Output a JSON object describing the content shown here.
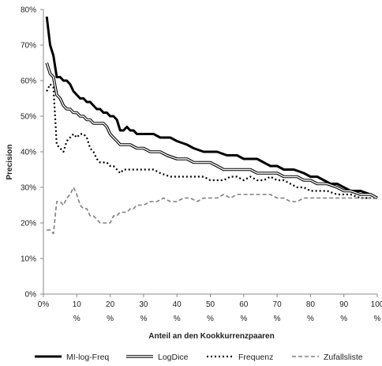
{
  "chart_data": {
    "type": "line",
    "title": "",
    "xlabel": "Anteil an den Kookkurrenzpaaren",
    "ylabel": "Precision",
    "xlim": [
      0,
      100
    ],
    "ylim": [
      0,
      80
    ],
    "grid": false,
    "legend_position": "bottom",
    "x_ticks": [
      {
        "value": 0,
        "line1": "0%",
        "line2": ""
      },
      {
        "value": 10,
        "line1": "10",
        "line2": "%"
      },
      {
        "value": 20,
        "line1": "20",
        "line2": "%"
      },
      {
        "value": 30,
        "line1": "30",
        "line2": "%"
      },
      {
        "value": 40,
        "line1": "40",
        "line2": "%"
      },
      {
        "value": 50,
        "line1": "50",
        "line2": "%"
      },
      {
        "value": 60,
        "line1": "60",
        "line2": "%"
      },
      {
        "value": 70,
        "line1": "70",
        "line2": "%"
      },
      {
        "value": 80,
        "line1": "80",
        "line2": "%"
      },
      {
        "value": 90,
        "line1": "90",
        "line2": "%"
      },
      {
        "value": 100,
        "line1": "100",
        "line2": "%"
      }
    ],
    "y_ticks": [
      {
        "value": 0,
        "label": "0%"
      },
      {
        "value": 10,
        "label": "10%"
      },
      {
        "value": 20,
        "label": "20%"
      },
      {
        "value": 30,
        "label": "30%"
      },
      {
        "value": 40,
        "label": "40%"
      },
      {
        "value": 50,
        "label": "50%"
      },
      {
        "value": 60,
        "label": "60%"
      },
      {
        "value": 70,
        "label": "70%"
      },
      {
        "value": 80,
        "label": "80%"
      }
    ],
    "series": [
      {
        "name": "MI-log-Freq",
        "style": "thick-solid",
        "color": "#000000",
        "points": [
          [
            1,
            78
          ],
          [
            2,
            70
          ],
          [
            3,
            67
          ],
          [
            4,
            61
          ],
          [
            5,
            61
          ],
          [
            6,
            60
          ],
          [
            7,
            60
          ],
          [
            8,
            59
          ],
          [
            9,
            57
          ],
          [
            10,
            56
          ],
          [
            11,
            55
          ],
          [
            12,
            55
          ],
          [
            13,
            54
          ],
          [
            14,
            54
          ],
          [
            15,
            53
          ],
          [
            16,
            52
          ],
          [
            17,
            52
          ],
          [
            18,
            51
          ],
          [
            19,
            51
          ],
          [
            20,
            50
          ],
          [
            21,
            50
          ],
          [
            22,
            49
          ],
          [
            23,
            46
          ],
          [
            24,
            46
          ],
          [
            25,
            47
          ],
          [
            26,
            46
          ],
          [
            27,
            46
          ],
          [
            28,
            45
          ],
          [
            30,
            45
          ],
          [
            33,
            45
          ],
          [
            35,
            44
          ],
          [
            38,
            44
          ],
          [
            40,
            43
          ],
          [
            43,
            42
          ],
          [
            45,
            41
          ],
          [
            48,
            40
          ],
          [
            50,
            40
          ],
          [
            52,
            40
          ],
          [
            55,
            39
          ],
          [
            58,
            39
          ],
          [
            60,
            38
          ],
          [
            62,
            38
          ],
          [
            64,
            38
          ],
          [
            66,
            37
          ],
          [
            68,
            36
          ],
          [
            70,
            36
          ],
          [
            72,
            35
          ],
          [
            75,
            35
          ],
          [
            78,
            34
          ],
          [
            80,
            33
          ],
          [
            82,
            33
          ],
          [
            84,
            32
          ],
          [
            86,
            31
          ],
          [
            88,
            31
          ],
          [
            90,
            30
          ],
          [
            92,
            29
          ],
          [
            95,
            29
          ],
          [
            98,
            28
          ],
          [
            100,
            27
          ]
        ]
      },
      {
        "name": "LogDice",
        "style": "double-line",
        "color": "#000000",
        "points": [
          [
            1,
            65
          ],
          [
            2,
            62
          ],
          [
            3,
            61
          ],
          [
            4,
            56
          ],
          [
            5,
            55
          ],
          [
            6,
            53
          ],
          [
            7,
            52
          ],
          [
            8,
            52
          ],
          [
            9,
            51
          ],
          [
            10,
            51
          ],
          [
            11,
            50
          ],
          [
            12,
            50
          ],
          [
            13,
            49
          ],
          [
            14,
            49
          ],
          [
            15,
            48
          ],
          [
            16,
            48
          ],
          [
            17,
            48
          ],
          [
            18,
            48
          ],
          [
            19,
            47
          ],
          [
            20,
            45
          ],
          [
            21,
            44
          ],
          [
            22,
            43
          ],
          [
            23,
            42
          ],
          [
            26,
            42
          ],
          [
            28,
            41
          ],
          [
            30,
            41
          ],
          [
            32,
            40
          ],
          [
            35,
            40
          ],
          [
            37,
            39
          ],
          [
            40,
            38
          ],
          [
            43,
            38
          ],
          [
            45,
            37
          ],
          [
            48,
            37
          ],
          [
            50,
            37
          ],
          [
            52,
            36
          ],
          [
            54,
            35
          ],
          [
            56,
            35
          ],
          [
            58,
            35
          ],
          [
            60,
            35
          ],
          [
            62,
            35
          ],
          [
            64,
            34
          ],
          [
            66,
            34
          ],
          [
            68,
            34
          ],
          [
            70,
            34
          ],
          [
            72,
            33
          ],
          [
            74,
            33
          ],
          [
            76,
            33
          ],
          [
            78,
            32
          ],
          [
            80,
            32
          ],
          [
            82,
            31
          ],
          [
            85,
            31
          ],
          [
            88,
            30
          ],
          [
            90,
            29
          ],
          [
            92,
            29
          ],
          [
            95,
            28
          ],
          [
            98,
            28
          ],
          [
            100,
            27
          ]
        ]
      },
      {
        "name": "Frequenz",
        "style": "dotted",
        "color": "#000000",
        "points": [
          [
            1,
            57
          ],
          [
            2,
            59
          ],
          [
            3,
            58
          ],
          [
            4,
            42
          ],
          [
            5,
            41
          ],
          [
            6,
            40
          ],
          [
            7,
            43
          ],
          [
            8,
            44
          ],
          [
            9,
            45
          ],
          [
            10,
            44
          ],
          [
            11,
            45
          ],
          [
            12,
            45
          ],
          [
            13,
            44
          ],
          [
            14,
            41
          ],
          [
            15,
            40
          ],
          [
            16,
            38
          ],
          [
            17,
            37
          ],
          [
            18,
            37
          ],
          [
            19,
            37
          ],
          [
            20,
            36
          ],
          [
            21,
            36
          ],
          [
            22,
            35
          ],
          [
            23,
            34
          ],
          [
            24,
            35
          ],
          [
            26,
            35
          ],
          [
            28,
            35
          ],
          [
            30,
            35
          ],
          [
            33,
            35
          ],
          [
            35,
            34
          ],
          [
            38,
            33
          ],
          [
            40,
            33
          ],
          [
            43,
            33
          ],
          [
            45,
            33
          ],
          [
            48,
            33
          ],
          [
            50,
            32
          ],
          [
            52,
            32
          ],
          [
            54,
            32
          ],
          [
            56,
            33
          ],
          [
            58,
            33
          ],
          [
            60,
            32
          ],
          [
            62,
            33
          ],
          [
            64,
            32
          ],
          [
            66,
            32
          ],
          [
            68,
            33
          ],
          [
            70,
            32
          ],
          [
            72,
            32
          ],
          [
            74,
            31
          ],
          [
            76,
            30
          ],
          [
            78,
            30
          ],
          [
            80,
            29
          ],
          [
            82,
            29
          ],
          [
            85,
            29
          ],
          [
            88,
            28
          ],
          [
            90,
            28
          ],
          [
            92,
            28
          ],
          [
            95,
            27
          ],
          [
            98,
            27
          ],
          [
            100,
            27
          ]
        ]
      },
      {
        "name": "Zufallsliste",
        "style": "dashed",
        "color": "#7f7f7f",
        "points": [
          [
            1,
            18
          ],
          [
            2,
            18
          ],
          [
            3,
            17
          ],
          [
            4,
            26
          ],
          [
            5,
            26
          ],
          [
            6,
            25
          ],
          [
            7,
            27
          ],
          [
            8,
            28
          ],
          [
            9,
            30
          ],
          [
            10,
            28
          ],
          [
            11,
            25
          ],
          [
            12,
            24
          ],
          [
            13,
            24
          ],
          [
            14,
            22
          ],
          [
            15,
            22
          ],
          [
            16,
            21
          ],
          [
            17,
            20
          ],
          [
            18,
            20
          ],
          [
            19,
            20
          ],
          [
            20,
            20
          ],
          [
            21,
            22
          ],
          [
            22,
            22
          ],
          [
            23,
            23
          ],
          [
            24,
            23
          ],
          [
            25,
            23
          ],
          [
            26,
            24
          ],
          [
            27,
            24
          ],
          [
            28,
            25
          ],
          [
            30,
            25
          ],
          [
            32,
            26
          ],
          [
            34,
            26
          ],
          [
            36,
            27
          ],
          [
            38,
            26
          ],
          [
            40,
            26
          ],
          [
            42,
            27
          ],
          [
            44,
            27
          ],
          [
            46,
            26
          ],
          [
            48,
            27
          ],
          [
            50,
            27
          ],
          [
            52,
            27
          ],
          [
            54,
            28
          ],
          [
            56,
            27
          ],
          [
            58,
            28
          ],
          [
            60,
            28
          ],
          [
            62,
            28
          ],
          [
            64,
            28
          ],
          [
            66,
            28
          ],
          [
            68,
            28
          ],
          [
            70,
            27
          ],
          [
            72,
            27
          ],
          [
            74,
            26
          ],
          [
            76,
            26
          ],
          [
            78,
            27
          ],
          [
            80,
            27
          ],
          [
            82,
            27
          ],
          [
            85,
            27
          ],
          [
            88,
            27
          ],
          [
            90,
            27
          ],
          [
            92,
            27
          ],
          [
            95,
            27
          ],
          [
            98,
            27
          ],
          [
            100,
            27
          ]
        ]
      }
    ]
  }
}
